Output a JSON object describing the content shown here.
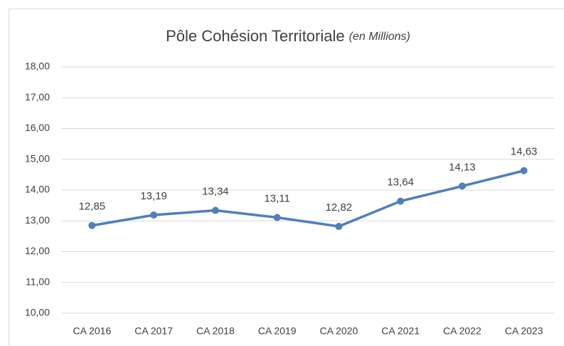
{
  "chart_data": {
    "type": "line",
    "title": "Pôle Cohésion Territoriale",
    "subtitle": "(en Millions)",
    "categories": [
      "CA 2016",
      "CA 2017",
      "CA 2018",
      "CA 2019",
      "CA 2020",
      "CA 2021",
      "CA 2022",
      "CA 2023"
    ],
    "series": [
      {
        "name": "Pôle Cohésion Territoriale",
        "color": "#4f7fbc",
        "values": [
          12.85,
          13.19,
          13.34,
          13.11,
          12.82,
          13.64,
          14.13,
          14.63
        ],
        "value_labels": [
          "12,85",
          "13,19",
          "13,34",
          "13,11",
          "12,82",
          "13,64",
          "14,13",
          "14,63"
        ]
      }
    ],
    "ylim": [
      10,
      18
    ],
    "yticks": [
      {
        "value": 10,
        "label": "10,00"
      },
      {
        "value": 11,
        "label": "11,00"
      },
      {
        "value": 12,
        "label": "12,00"
      },
      {
        "value": 13,
        "label": "13,00"
      },
      {
        "value": 14,
        "label": "14,00"
      },
      {
        "value": 15,
        "label": "15,00"
      },
      {
        "value": 16,
        "label": "16,00"
      },
      {
        "value": 17,
        "label": "17,00"
      },
      {
        "value": 18,
        "label": "18,00"
      }
    ],
    "grid": true
  }
}
